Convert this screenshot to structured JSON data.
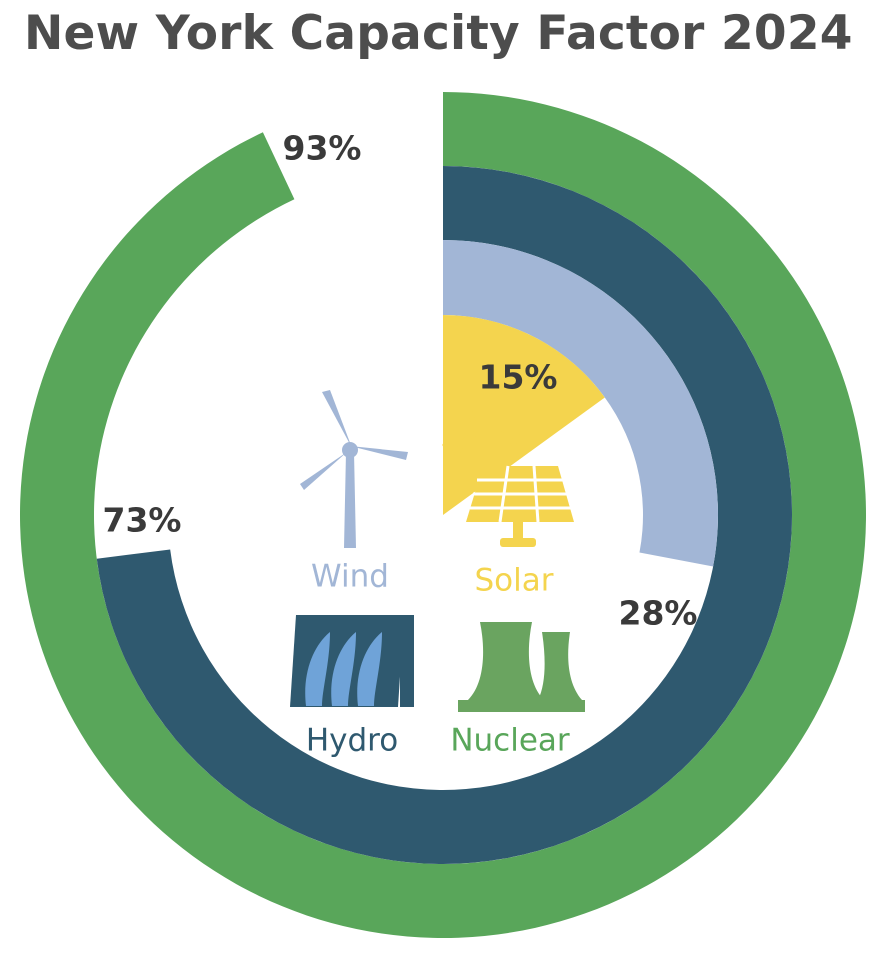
{
  "title": "New York Capacity Factor 2024",
  "chart_data": {
    "type": "radial-bar",
    "title": "New York Capacity Factor 2024",
    "unit": "%",
    "max": 100,
    "series": [
      {
        "name": "Nuclear",
        "value": 93,
        "label": "93%",
        "color": "#59a65a",
        "icon": "nuclear-cooling-tower-icon"
      },
      {
        "name": "Hydro",
        "value": 73,
        "label": "73%",
        "color": "#2f596f",
        "icon": "hydro-dam-icon"
      },
      {
        "name": "Wind",
        "value": 28,
        "label": "28%",
        "color": "#a2b6d6",
        "icon": "wind-turbine-icon"
      },
      {
        "name": "Solar",
        "value": 15,
        "label": "15%",
        "color": "#f4d44e",
        "icon": "solar-panel-icon"
      }
    ]
  }
}
